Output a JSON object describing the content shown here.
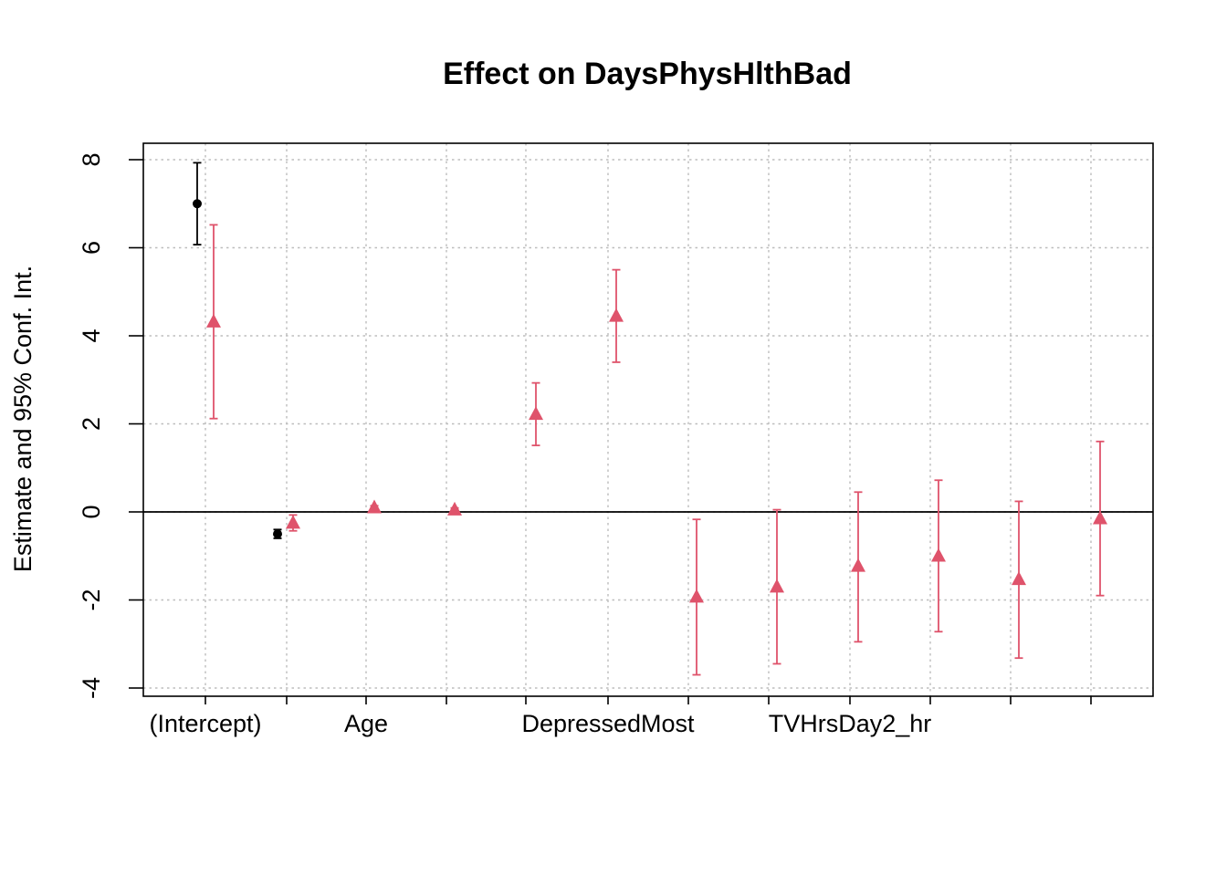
{
  "chart_data": {
    "type": "scatter",
    "title": "Effect on DaysPhysHlthBad",
    "xlabel": "",
    "ylabel": "Estimate and 95% Conf. Int.",
    "ylim": [
      -4.15,
      8.4
    ],
    "yticks": [
      -4,
      -2,
      0,
      2,
      4,
      6,
      8
    ],
    "x_tick_labels": [
      "(Intercept)",
      "",
      "Age",
      "",
      "DepressedMost",
      "",
      "TVHrsDay2_hr",
      "",
      "",
      ""
    ],
    "grid": true,
    "reference_line": 0,
    "colors": {
      "series_1": "#000000",
      "series_2": "#DF536B"
    },
    "series": [
      {
        "marker": "circle",
        "points": [
          {
            "pos": 1,
            "est": 7.0,
            "lower": 6.07,
            "upper": 7.93
          },
          {
            "pos": 2,
            "est": -0.5,
            "lower": -0.6,
            "upper": -0.4
          }
        ]
      },
      {
        "marker": "triangle",
        "points": [
          {
            "pos": 1,
            "est": 4.32,
            "lower": 2.12,
            "upper": 6.52
          },
          {
            "pos": 2,
            "est": -0.25,
            "lower": -0.43,
            "upper": -0.07
          },
          {
            "pos": 3,
            "est": 0.1,
            "lower": 0.06,
            "upper": 0.14
          },
          {
            "pos": 4,
            "est": 0.05,
            "lower": 0.01,
            "upper": 0.09
          },
          {
            "pos": 5,
            "est": 2.22,
            "lower": 1.51,
            "upper": 2.93
          },
          {
            "pos": 6,
            "est": 4.45,
            "lower": 3.4,
            "upper": 5.5
          },
          {
            "pos": 7,
            "est": -1.93,
            "lower": -3.7,
            "upper": -0.17
          },
          {
            "pos": 8,
            "est": -1.7,
            "lower": -3.45,
            "upper": 0.05
          },
          {
            "pos": 9,
            "est": -1.23,
            "lower": -2.95,
            "upper": 0.45
          },
          {
            "pos": 10,
            "est": -1.0,
            "lower": -2.72,
            "upper": 0.72
          },
          {
            "pos": 11,
            "est": -1.53,
            "lower": -3.32,
            "upper": 0.24
          },
          {
            "pos": 12,
            "est": -0.15,
            "lower": -1.9,
            "upper": 1.6
          }
        ]
      }
    ]
  }
}
